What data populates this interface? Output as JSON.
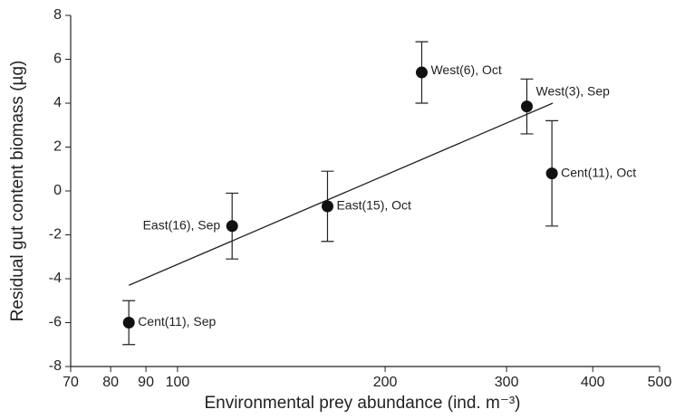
{
  "chart_data": {
    "type": "scatter",
    "xlabel": "Environmental prey abundance (ind. m⁻³)",
    "ylabel": "Residual gut content biomass (µg)",
    "x": [
      85,
      120,
      165,
      226,
      321,
      349
    ],
    "values": [
      -6,
      -1.6,
      -0.7,
      5.4,
      3.85,
      0.8
    ],
    "errors": [
      1,
      1.5,
      1.6,
      1.4,
      1.25,
      2.4
    ],
    "labels": [
      "Cent(11), Sep",
      "East(16), Sep",
      "East(15), Oct",
      "West(6), Oct",
      "West(3), Sep",
      "Cent(11), Oct"
    ],
    "color": "#111111",
    "fit_line": {
      "x": [
        85,
        350
      ],
      "y": [
        -4.3,
        4.0
      ]
    },
    "xscale": "log",
    "xlim": [
      70,
      500
    ],
    "xticks": [
      70,
      80,
      90,
      100,
      200,
      300,
      400,
      500
    ],
    "ylim": [
      -8,
      8
    ],
    "yticks": [
      -8,
      -6,
      -4,
      -2,
      0,
      2,
      4,
      6,
      8
    ],
    "grid": false
  }
}
